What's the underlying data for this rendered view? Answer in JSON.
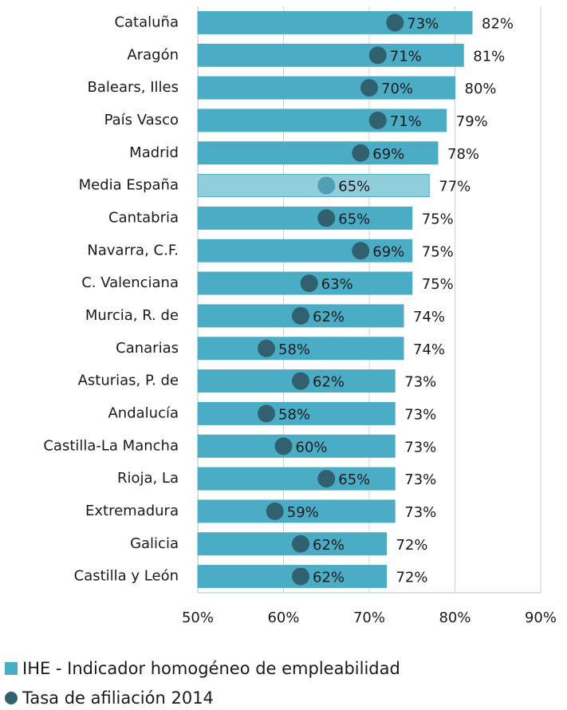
{
  "chart_data": {
    "type": "bar",
    "orientation": "horizontal",
    "categories": [
      "Cataluña",
      "Aragón",
      "Balears, Illes",
      "País Vasco",
      "Madrid",
      "Media España",
      "Cantabria",
      "Navarra, C.F.",
      "C. Valenciana",
      "Murcia, R. de",
      "Canarias",
      "Asturias, P. de",
      "Andalucía",
      "Castilla-La Mancha",
      "Rioja, La",
      "Extremadura",
      "Galicia",
      "Castilla y León"
    ],
    "series": [
      {
        "name": "IHE - Indicador homogéneo de empleabilidad",
        "type": "bar",
        "color": "#4bacc6",
        "point_colors": [
          "#4bacc6",
          "#4bacc6",
          "#4bacc6",
          "#4bacc6",
          "#4bacc6",
          "#92cddc",
          "#4bacc6",
          "#4bacc6",
          "#4bacc6",
          "#4bacc6",
          "#4bacc6",
          "#4bacc6",
          "#4bacc6",
          "#4bacc6",
          "#4bacc6",
          "#4bacc6",
          "#4bacc6",
          "#4bacc6"
        ],
        "values": [
          82,
          81,
          80,
          79,
          78,
          77,
          75,
          75,
          75,
          74,
          74,
          73,
          73,
          73,
          73,
          73,
          72,
          72
        ],
        "value_labels": [
          "82%",
          "81%",
          "80%",
          "79%",
          "78%",
          "77%",
          "75%",
          "75%",
          "75%",
          "74%",
          "74%",
          "73%",
          "73%",
          "73%",
          "73%",
          "73%",
          "72%",
          "72%"
        ]
      },
      {
        "name": "Tasa de afiliación 2014",
        "type": "scatter",
        "color": "#31606e",
        "point_colors": [
          "#31606e",
          "#31606e",
          "#31606e",
          "#31606e",
          "#31606e",
          "#4f9fb5",
          "#31606e",
          "#31606e",
          "#31606e",
          "#31606e",
          "#31606e",
          "#31606e",
          "#31606e",
          "#31606e",
          "#31606e",
          "#31606e",
          "#31606e",
          "#31606e"
        ],
        "values": [
          73,
          71,
          70,
          71,
          69,
          65,
          65,
          69,
          63,
          62,
          58,
          62,
          58,
          60,
          65,
          59,
          62,
          62
        ],
        "value_labels": [
          "73%",
          "71%",
          "70%",
          "71%",
          "69%",
          "65%",
          "65%",
          "69%",
          "63%",
          "62%",
          "58%",
          "62%",
          "58%",
          "60%",
          "65%",
          "59%",
          "62%",
          "62%"
        ]
      }
    ],
    "xlim": [
      50,
      90
    ],
    "xticks": [
      {
        "value": 50,
        "label": "50%"
      },
      {
        "value": 60,
        "label": "60%"
      },
      {
        "value": 70,
        "label": "70%"
      },
      {
        "value": 80,
        "label": "80%"
      },
      {
        "value": 90,
        "label": "90%"
      }
    ],
    "grid": true,
    "legend": "bottom-left"
  }
}
